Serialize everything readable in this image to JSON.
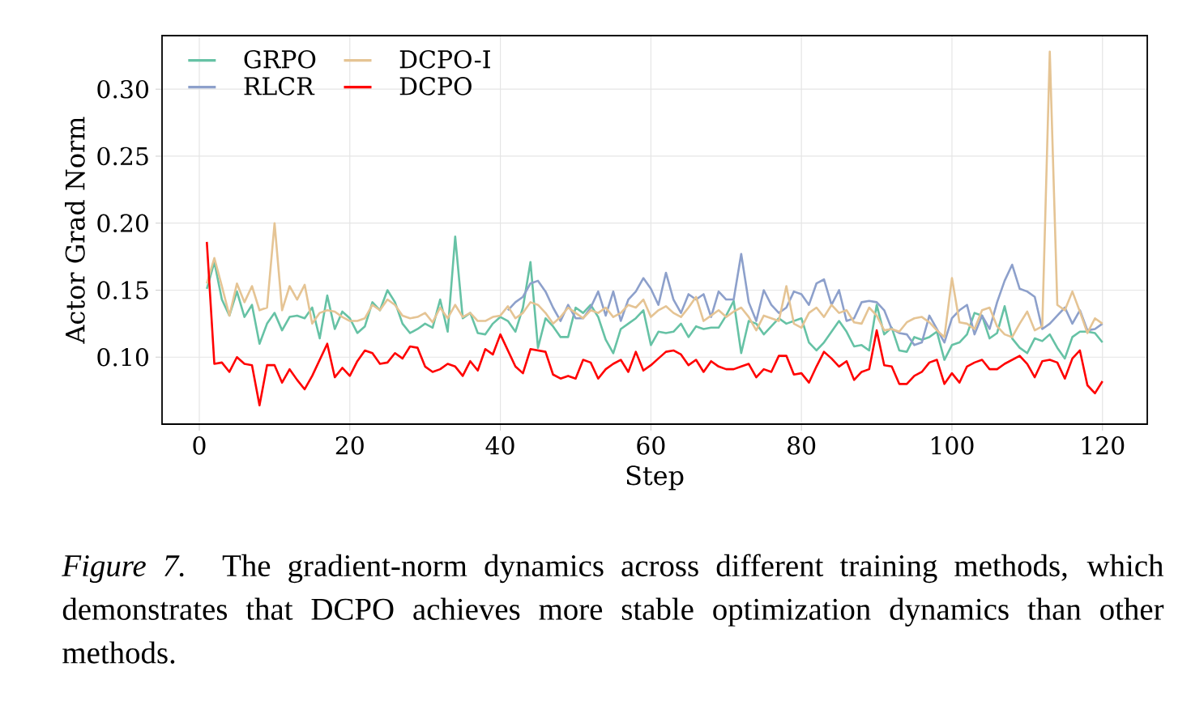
{
  "chart_data": {
    "type": "line",
    "xlabel": "Step",
    "ylabel": "Actor Grad Norm",
    "x": [
      1,
      2,
      3,
      4,
      5,
      6,
      7,
      8,
      9,
      10,
      11,
      12,
      13,
      14,
      15,
      16,
      17,
      18,
      19,
      20,
      21,
      22,
      23,
      24,
      25,
      26,
      27,
      28,
      29,
      30,
      31,
      32,
      33,
      34,
      35,
      36,
      37,
      38,
      39,
      40,
      41,
      42,
      43,
      44,
      45,
      46,
      47,
      48,
      49,
      50,
      51,
      52,
      53,
      54,
      55,
      56,
      57,
      58,
      59,
      60,
      61,
      62,
      63,
      64,
      65,
      66,
      67,
      68,
      69,
      70,
      71,
      72,
      73,
      74,
      75,
      76,
      77,
      78,
      79,
      80,
      81,
      82,
      83,
      84,
      85,
      86,
      87,
      88,
      89,
      90,
      91,
      92,
      93,
      94,
      95,
      96,
      97,
      98,
      99,
      100,
      101,
      102,
      103,
      104,
      105,
      106,
      107,
      108,
      109,
      110,
      111,
      112,
      113,
      114,
      115,
      116,
      117,
      118,
      119,
      120
    ],
    "xlim": [
      -4.95,
      125.95
    ],
    "xticks": [
      0,
      20,
      40,
      60,
      80,
      100,
      120
    ],
    "ylim": [
      0.05,
      0.34
    ],
    "yticks": [
      {
        "value": 0.1,
        "label": "0.10"
      },
      0.15,
      {
        "value": 0.2,
        "label": "0.20"
      },
      0.25,
      {
        "value": 0.3,
        "label": "0.30"
      }
    ],
    "grid": true,
    "legend": "top left",
    "series": [
      {
        "name": "GRPO",
        "color": "#66c2a5",
        "values": [
          0.151,
          0.171,
          0.143,
          0.131,
          0.149,
          0.13,
          0.139,
          0.11,
          0.125,
          0.133,
          0.12,
          0.13,
          0.131,
          0.129,
          0.137,
          0.114,
          0.146,
          0.121,
          0.134,
          0.129,
          0.118,
          0.123,
          0.141,
          0.135,
          0.15,
          0.141,
          0.125,
          0.118,
          0.121,
          0.125,
          0.122,
          0.143,
          0.119,
          0.19,
          0.129,
          0.133,
          0.118,
          0.117,
          0.125,
          0.13,
          0.127,
          0.119,
          0.137,
          0.171,
          0.107,
          0.129,
          0.123,
          0.115,
          0.115,
          0.137,
          0.133,
          0.139,
          0.13,
          0.113,
          0.103,
          0.121,
          0.125,
          0.129,
          0.135,
          0.109,
          0.119,
          0.118,
          0.119,
          0.125,
          0.115,
          0.123,
          0.121,
          0.122,
          0.122,
          0.131,
          0.142,
          0.103,
          0.127,
          0.125,
          0.117,
          0.123,
          0.129,
          0.125,
          0.127,
          0.129,
          0.111,
          0.105,
          0.111,
          0.119,
          0.127,
          0.119,
          0.108,
          0.109,
          0.105,
          0.139,
          0.117,
          0.122,
          0.105,
          0.104,
          0.115,
          0.113,
          0.115,
          0.119,
          0.098,
          0.109,
          0.111,
          0.117,
          0.133,
          0.131,
          0.114,
          0.118,
          0.138,
          0.114,
          0.107,
          0.103,
          0.114,
          0.112,
          0.117,
          0.107,
          0.099,
          0.115,
          0.119,
          0.119,
          0.118,
          0.111
        ]
      },
      {
        "name": "RLCR",
        "color": "#8da0cb",
        "values": [
          null,
          null,
          null,
          null,
          null,
          null,
          null,
          null,
          null,
          null,
          null,
          null,
          null,
          null,
          null,
          null,
          null,
          null,
          null,
          null,
          null,
          null,
          null,
          null,
          null,
          null,
          null,
          null,
          null,
          null,
          null,
          null,
          null,
          null,
          null,
          null,
          null,
          null,
          null,
          null,
          0.135,
          0.141,
          0.145,
          0.155,
          0.157,
          0.149,
          0.137,
          0.127,
          0.139,
          0.129,
          0.129,
          0.137,
          0.149,
          0.131,
          0.149,
          0.127,
          0.143,
          0.149,
          0.159,
          0.151,
          0.139,
          0.163,
          0.143,
          0.133,
          0.147,
          0.143,
          0.147,
          0.13,
          0.149,
          0.143,
          0.143,
          0.177,
          0.141,
          0.127,
          0.15,
          0.139,
          0.133,
          0.137,
          0.149,
          0.147,
          0.139,
          0.155,
          0.158,
          0.139,
          0.15,
          0.127,
          0.129,
          0.141,
          0.142,
          0.141,
          0.135,
          0.121,
          0.118,
          0.117,
          0.109,
          0.111,
          0.131,
          0.121,
          0.111,
          0.129,
          0.135,
          0.139,
          0.117,
          0.131,
          0.121,
          0.141,
          0.157,
          0.169,
          0.151,
          0.149,
          0.145,
          0.121,
          0.125,
          0.131,
          0.137,
          0.125,
          0.135,
          0.12,
          0.121,
          0.125
        ]
      },
      {
        "name": "DCPO-I",
        "color": "#e5c494",
        "values": [
          0.155,
          0.174,
          0.153,
          0.131,
          0.155,
          0.141,
          0.153,
          0.135,
          0.137,
          0.2,
          0.135,
          0.153,
          0.143,
          0.154,
          0.125,
          0.133,
          0.135,
          0.134,
          0.13,
          0.127,
          0.127,
          0.129,
          0.139,
          0.135,
          0.143,
          0.139,
          0.131,
          0.129,
          0.13,
          0.133,
          0.126,
          0.137,
          0.129,
          0.139,
          0.13,
          0.133,
          0.127,
          0.127,
          0.13,
          0.131,
          0.138,
          0.129,
          0.133,
          0.141,
          0.139,
          0.133,
          0.125,
          0.13,
          0.137,
          0.133,
          0.129,
          0.135,
          0.133,
          0.137,
          0.13,
          0.133,
          0.139,
          0.137,
          0.143,
          0.13,
          0.135,
          0.138,
          0.133,
          0.13,
          0.137,
          0.145,
          0.127,
          0.131,
          0.135,
          0.13,
          0.134,
          0.137,
          0.13,
          0.12,
          0.131,
          0.129,
          0.127,
          0.153,
          0.125,
          0.122,
          0.133,
          0.137,
          0.13,
          0.139,
          0.133,
          0.135,
          0.126,
          0.125,
          0.137,
          0.131,
          0.12,
          0.121,
          0.119,
          0.126,
          0.129,
          0.13,
          0.126,
          0.12,
          0.115,
          0.159,
          0.126,
          0.125,
          0.121,
          0.135,
          0.137,
          0.123,
          0.117,
          0.115,
          0.125,
          0.134,
          0.12,
          0.123,
          0.328,
          0.139,
          0.135,
          0.149,
          0.134,
          0.118,
          0.129,
          0.125
        ]
      },
      {
        "name": "DCPO",
        "color": "#ff0000",
        "values": [
          0.186,
          0.095,
          0.096,
          0.089,
          0.1,
          0.095,
          0.094,
          0.064,
          0.094,
          0.094,
          0.081,
          0.091,
          0.083,
          0.076,
          0.086,
          0.098,
          0.11,
          0.085,
          0.092,
          0.086,
          0.097,
          0.105,
          0.103,
          0.095,
          0.096,
          0.103,
          0.099,
          0.108,
          0.107,
          0.093,
          0.089,
          0.091,
          0.095,
          0.093,
          0.086,
          0.097,
          0.09,
          0.106,
          0.102,
          0.117,
          0.105,
          0.093,
          0.088,
          0.106,
          0.105,
          0.104,
          0.087,
          0.084,
          0.086,
          0.084,
          0.098,
          0.096,
          0.084,
          0.091,
          0.095,
          0.098,
          0.089,
          0.104,
          0.09,
          0.094,
          0.099,
          0.104,
          0.105,
          0.102,
          0.094,
          0.098,
          0.089,
          0.097,
          0.093,
          0.091,
          0.091,
          0.093,
          0.095,
          0.085,
          0.091,
          0.089,
          0.101,
          0.101,
          0.087,
          0.088,
          0.081,
          0.093,
          0.104,
          0.099,
          0.093,
          0.097,
          0.083,
          0.089,
          0.091,
          0.12,
          0.094,
          0.093,
          0.08,
          0.08,
          0.086,
          0.089,
          0.096,
          0.098,
          0.08,
          0.088,
          0.081,
          0.093,
          0.096,
          0.098,
          0.091,
          0.091,
          0.095,
          0.098,
          0.101,
          0.095,
          0.085,
          0.097,
          0.098,
          0.096,
          0.084,
          0.099,
          0.105,
          0.079,
          0.073,
          0.082
        ]
      }
    ],
    "annotations": [
      "*Figure 7.* The gradient-norm dynamics across different training methods, which demonstrates that DCPO achieves more stable optimization dynamics than other methods."
    ]
  }
}
